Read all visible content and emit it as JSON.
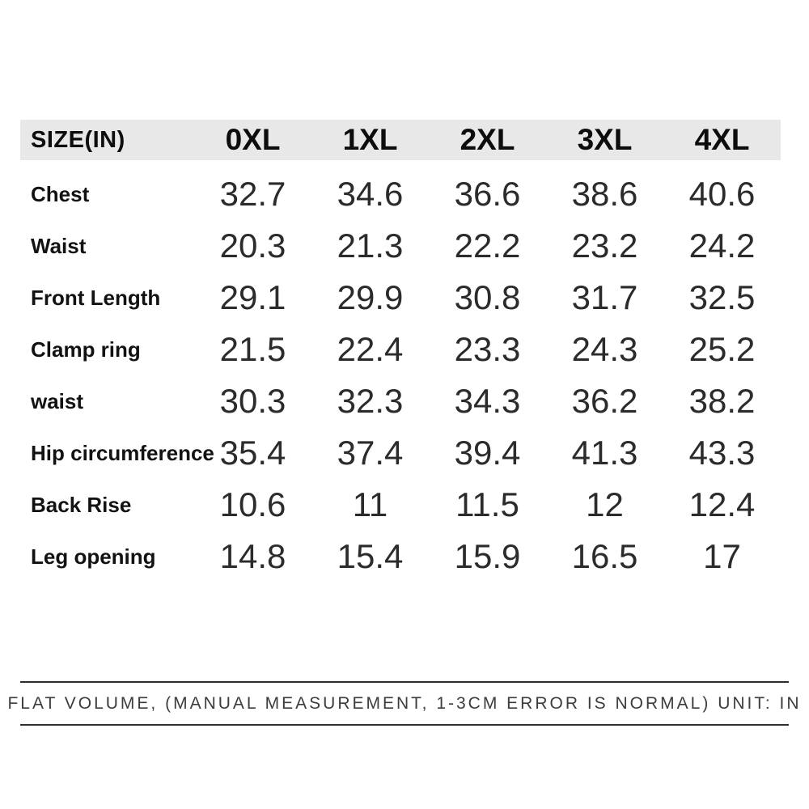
{
  "chart_data": {
    "type": "table",
    "title": "SIZE(IN)",
    "unit": "IN",
    "columns": [
      "SIZE(IN)",
      "0XL",
      "1XL",
      "2XL",
      "3XL",
      "4XL"
    ],
    "rows": [
      {
        "label": "Chest",
        "values": [
          "32.7",
          "34.6",
          "36.6",
          "38.6",
          "40.6"
        ]
      },
      {
        "label": "Waist",
        "values": [
          "20.3",
          "21.3",
          "22.2",
          "23.2",
          "24.2"
        ]
      },
      {
        "label": "Front Length",
        "values": [
          "29.1",
          "29.9",
          "30.8",
          "31.7",
          "32.5"
        ]
      },
      {
        "label": "Clamp ring",
        "values": [
          "21.5",
          "22.4",
          "23.3",
          "24.3",
          "25.2"
        ]
      },
      {
        "label": "waist",
        "values": [
          "30.3",
          "32.3",
          "34.3",
          "36.2",
          "38.2"
        ]
      },
      {
        "label": "Hip circumference",
        "values": [
          "35.4",
          "37.4",
          "39.4",
          "41.3",
          "43.3"
        ]
      },
      {
        "label": "Back Rise",
        "values": [
          "10.6",
          "11",
          "11.5",
          "12",
          "12.4"
        ]
      },
      {
        "label": "Leg opening",
        "values": [
          "14.8",
          "15.4",
          "15.9",
          "16.5",
          "17"
        ]
      }
    ],
    "footnote": "FLAT VOLUME, (MANUAL MEASUREMENT, 1-3CM ERROR IS NORMAL) UNIT: IN",
    "layout": {
      "header_background": "#e8e8e8",
      "page_background": "#ffffff",
      "rule_color": "#2e2e2e"
    }
  }
}
